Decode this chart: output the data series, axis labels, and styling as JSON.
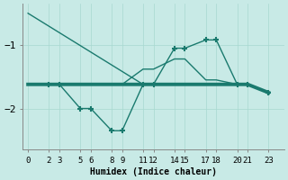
{
  "xlabel": "Humidex (Indice chaleur)",
  "bg_color": "#c8eae6",
  "line_color": "#1a7a6e",
  "grid_color": "#a8d8d0",
  "xlim": [
    -0.5,
    24.5
  ],
  "ylim": [
    -2.65,
    -0.35
  ],
  "yticks": [
    -2,
    -1
  ],
  "xticks": [
    0,
    2,
    3,
    5,
    6,
    8,
    9,
    11,
    12,
    14,
    15,
    17,
    18,
    20,
    21,
    23
  ],
  "lines": [
    {
      "x": [
        0,
        11
      ],
      "y": [
        -0.5,
        -1.62
      ],
      "marker": null,
      "linewidth": 1.0,
      "zorder": 3
    },
    {
      "x": [
        0,
        2,
        3,
        5,
        6,
        8,
        9,
        11,
        12,
        14,
        15,
        17,
        18,
        20,
        21,
        23
      ],
      "y": [
        -1.62,
        -1.62,
        -1.62,
        -1.62,
        -1.62,
        -1.62,
        -1.62,
        -1.62,
        -1.62,
        -1.62,
        -1.62,
        -1.62,
        -1.62,
        -1.62,
        -1.62,
        -1.75
      ],
      "marker": null,
      "linewidth": 2.8,
      "zorder": 2
    },
    {
      "x": [
        2,
        3,
        5,
        6,
        8,
        9,
        11,
        12,
        14,
        15,
        17,
        18,
        20,
        21,
        23
      ],
      "y": [
        -1.62,
        -1.62,
        -2.0,
        -2.0,
        -2.35,
        -2.35,
        -1.62,
        -1.62,
        -1.05,
        -1.05,
        -0.92,
        -0.92,
        -1.62,
        -1.62,
        -1.75
      ],
      "marker": "+",
      "linewidth": 1.0,
      "zorder": 4
    },
    {
      "x": [
        2,
        3,
        5,
        6,
        8,
        9,
        11,
        12,
        14,
        15,
        17,
        18,
        20,
        21,
        23
      ],
      "y": [
        -1.62,
        -1.62,
        -1.62,
        -1.62,
        -1.62,
        -1.62,
        -1.38,
        -1.38,
        -1.22,
        -1.22,
        -1.55,
        -1.55,
        -1.62,
        -1.62,
        -1.75
      ],
      "marker": null,
      "linewidth": 1.0,
      "zorder": 3
    }
  ]
}
